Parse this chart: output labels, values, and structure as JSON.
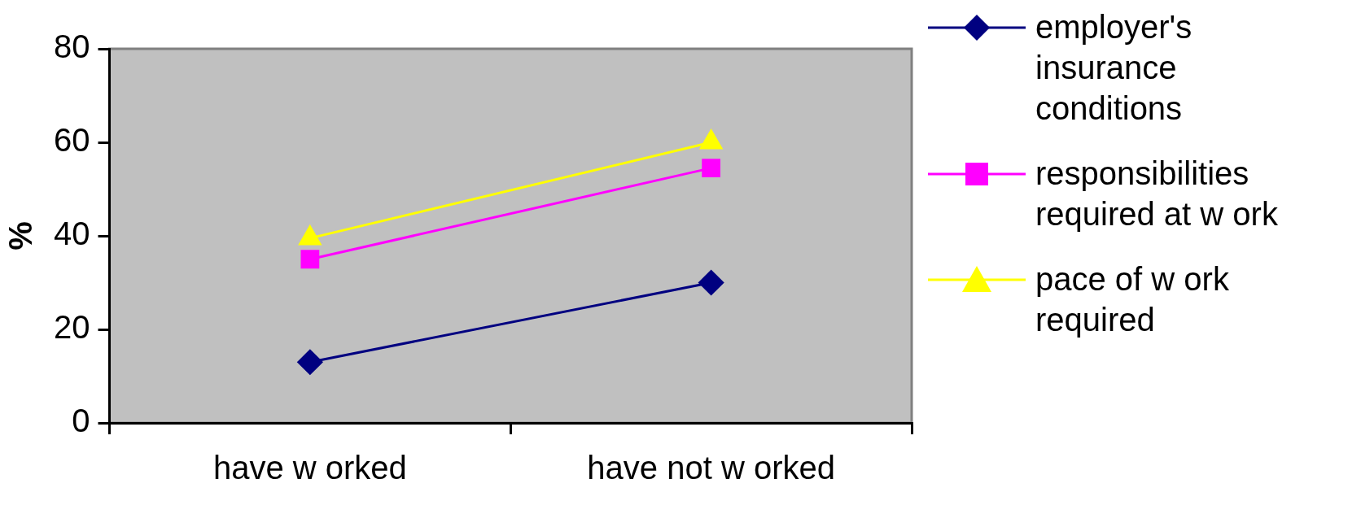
{
  "chart_data": {
    "type": "line",
    "ylabel": "%",
    "categories": [
      "have w orked",
      "have not w orked"
    ],
    "series": [
      {
        "name": "employer's insurance conditions",
        "color": "#000080",
        "marker": "diamond",
        "values": [
          13,
          30
        ]
      },
      {
        "name": "responsibilities required at w ork",
        "color": "#ff00ff",
        "marker": "square",
        "values": [
          35,
          54.5
        ]
      },
      {
        "name": "pace of w ork required",
        "color": "#ffff00",
        "marker": "triangle",
        "values": [
          39.5,
          60
        ]
      }
    ],
    "ylim": [
      0,
      80
    ],
    "yticks": [
      0,
      20,
      40,
      60,
      80
    ],
    "grid": false,
    "legend": "right"
  }
}
